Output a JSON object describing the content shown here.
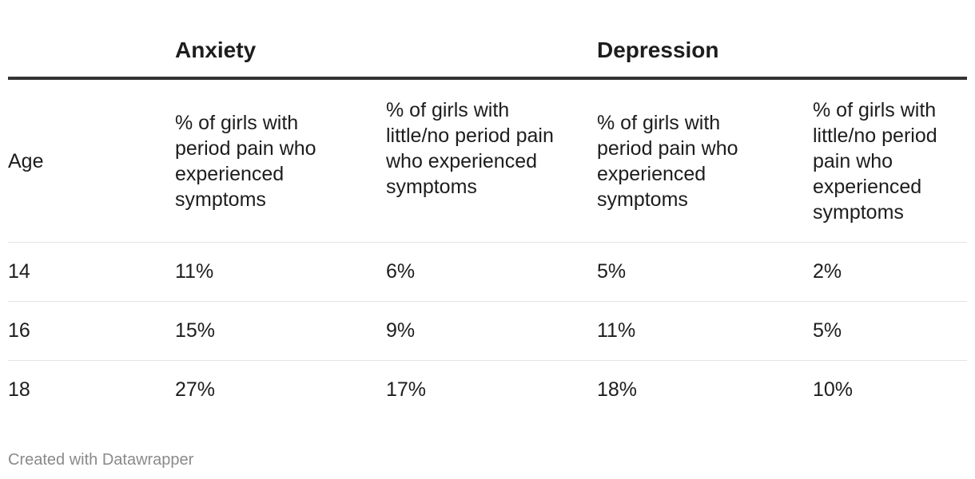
{
  "chart_data": {
    "type": "table",
    "groups": [
      {
        "label": "Anxiety"
      },
      {
        "label": "Depression"
      }
    ],
    "columns": [
      "Age",
      "% of girls with period pain who experienced symptoms",
      "% of girls with little/no period pain who experienced symptoms",
      "% of girls with period pain who experienced symptoms",
      "% of girls with little/no period pain who experienced symptoms"
    ],
    "rows": [
      [
        "14",
        "11%",
        "6%",
        "5%",
        "2%"
      ],
      [
        "16",
        "15%",
        "9%",
        "11%",
        "5%"
      ],
      [
        "18",
        "27%",
        "17%",
        "18%",
        "10%"
      ]
    ]
  },
  "footer": {
    "credit": "Created with Datawrapper"
  }
}
